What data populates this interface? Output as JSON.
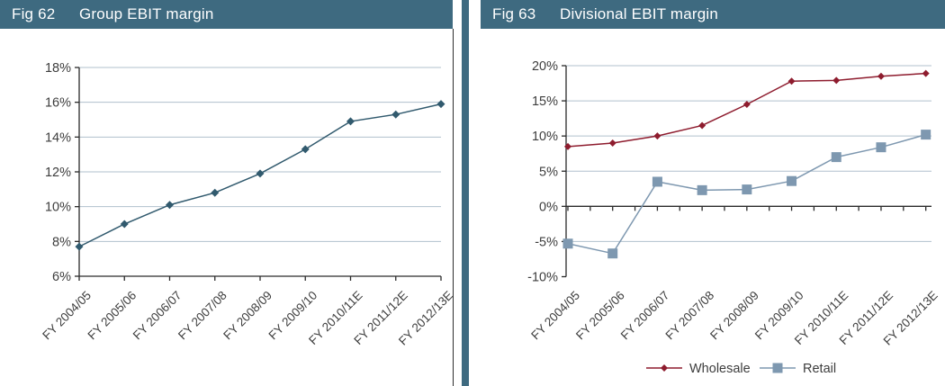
{
  "panels": {
    "left": {
      "fig_label": "Fig 62",
      "title": "Group EBIT margin"
    },
    "right": {
      "fig_label": "Fig 63",
      "title": "Divisional EBIT margin"
    }
  },
  "colors": {
    "header_bg": "#3e6a80",
    "header_text": "#ffffff",
    "gridline": "#b0c0cd",
    "axis": "#2a2a2a",
    "tick_label": "#3d3d3d",
    "group_series": "#315a6e",
    "wholesale_series": "#8e1c2e",
    "retail_series": "#7e98b0"
  },
  "chart_data": [
    {
      "type": "line",
      "title": "Group EBIT margin",
      "fig": "Fig 62",
      "categories": [
        "FY 2004/05",
        "FY 2005/06",
        "FY 2006/07",
        "FY 2007/08",
        "FY 2008/09",
        "FY 2009/10",
        "FY 2010/11E",
        "FY 2011/12E",
        "FY 2012/13E"
      ],
      "series": [
        {
          "name": "Group EBIT margin",
          "color": "#315a6e",
          "marker": "diamond",
          "marker_size": 9,
          "values": [
            7.7,
            9.0,
            10.1,
            10.8,
            11.9,
            13.3,
            14.9,
            15.3,
            15.9
          ]
        }
      ],
      "ylabel": "",
      "xlabel": "",
      "ylim": [
        6,
        18
      ],
      "ytick_step": 2,
      "ytick_format": "percent",
      "grid": true,
      "legend": "none",
      "axis_cross_y": 6
    },
    {
      "type": "line",
      "title": "Divisional EBIT margin",
      "fig": "Fig 63",
      "categories": [
        "FY 2004/05",
        "FY 2005/06",
        "FY 2006/07",
        "FY 2007/08",
        "FY 2008/09",
        "FY 2009/10",
        "FY 2010/11E",
        "FY 2011/12E",
        "FY 2012/13E"
      ],
      "series": [
        {
          "name": "Wholesale",
          "color": "#8e1c2e",
          "marker": "diamond",
          "marker_size": 8,
          "values": [
            8.5,
            9.0,
            10.0,
            11.5,
            14.5,
            17.8,
            17.9,
            18.5,
            18.9
          ]
        },
        {
          "name": "Retail",
          "color": "#7e98b0",
          "marker": "square",
          "marker_size": 11,
          "values": [
            -5.3,
            -6.7,
            3.5,
            2.3,
            2.4,
            3.6,
            7.0,
            8.4,
            10.2
          ]
        }
      ],
      "ylabel": "",
      "xlabel": "",
      "ylim": [
        -10,
        20
      ],
      "ytick_step": 5,
      "ytick_format": "percent",
      "grid": true,
      "legend": "bottom",
      "axis_cross_y": 0
    }
  ]
}
